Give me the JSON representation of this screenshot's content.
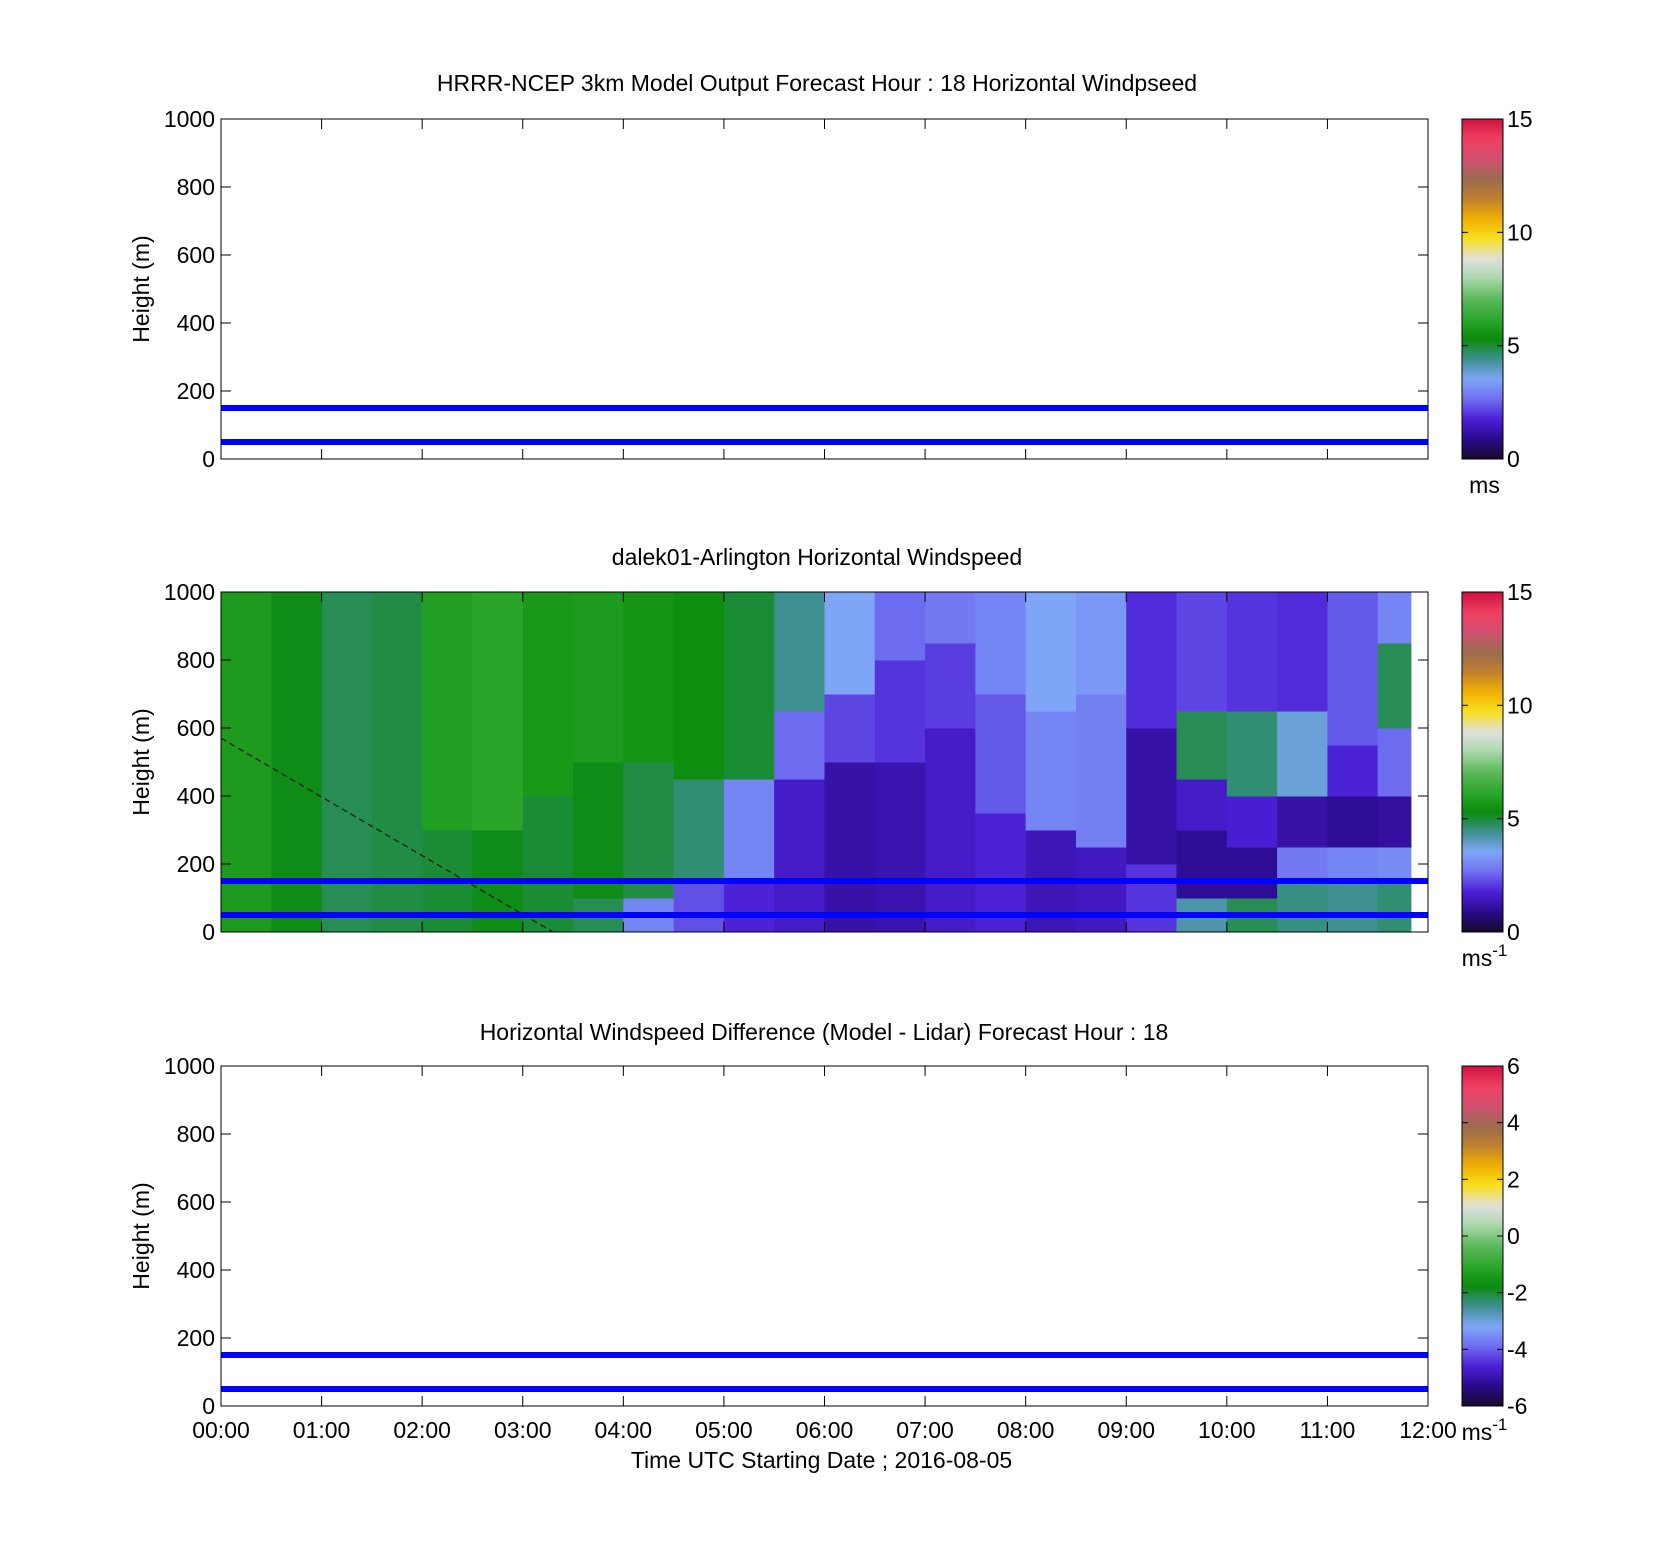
{
  "chart_data": [
    {
      "type": "heatmap",
      "title": "HRRR-NCEP 3km Model Output   Forecast Hour : 18 Horizontal Windpseed",
      "xlabel": "",
      "ylabel": "Height (m)",
      "xlim": [
        "00:00",
        "12:00"
      ],
      "ylim": [
        0,
        1000
      ],
      "x_ticks": [
        "00:00",
        "01:00",
        "02:00",
        "03:00",
        "04:00",
        "05:00",
        "06:00",
        "07:00",
        "08:00",
        "09:00",
        "10:00",
        "11:00",
        "12:00"
      ],
      "y_ticks": [
        0,
        200,
        400,
        600,
        800,
        1000
      ],
      "reference_lines_height_m": [
        50,
        150
      ],
      "reference_line_color": "#0000ff",
      "colorbar": {
        "ticks": [
          0,
          5,
          10,
          15
        ],
        "range": [
          0,
          15
        ],
        "unit_label": "ms",
        "unit_superscript": ""
      },
      "cells": []
    },
    {
      "type": "heatmap",
      "title": "dalek01-Arlington  Horizontal Windspeed",
      "xlabel": "",
      "ylabel": "Height (m)",
      "xlim": [
        "00:00",
        "12:00"
      ],
      "ylim": [
        0,
        1000
      ],
      "x_ticks": [
        "00:00",
        "01:00",
        "02:00",
        "03:00",
        "04:00",
        "05:00",
        "06:00",
        "07:00",
        "08:00",
        "09:00",
        "10:00",
        "11:00",
        "12:00"
      ],
      "y_ticks": [
        0,
        200,
        400,
        600,
        800,
        1000
      ],
      "reference_lines_height_m": [
        50,
        150
      ],
      "reference_line_color": "#0000ff",
      "colorbar": {
        "ticks": [
          0,
          5,
          10,
          15
        ],
        "range": [
          0,
          15
        ],
        "unit_label": "ms",
        "unit_superscript": "-1"
      },
      "data_time_range_hours": [
        0,
        11.83
      ],
      "data_height_range_m": [
        0,
        1000
      ],
      "dashed_line": {
        "from": [
          0,
          570
        ],
        "to": [
          3.3,
          0
        ]
      },
      "profiles": [
        {
          "t_start": 0.0,
          "t_end": 0.5,
          "segments": [
            [
              0,
              1000,
              5.8
            ]
          ]
        },
        {
          "t_start": 0.5,
          "t_end": 1.0,
          "segments": [
            [
              0,
              1000,
              5.2
            ]
          ]
        },
        {
          "t_start": 1.0,
          "t_end": 1.5,
          "segments": [
            [
              0,
              1000,
              4.8
            ]
          ]
        },
        {
          "t_start": 1.5,
          "t_end": 2.0,
          "segments": [
            [
              0,
              1000,
              4.9
            ]
          ]
        },
        {
          "t_start": 2.0,
          "t_end": 2.5,
          "segments": [
            [
              0,
              300,
              5.0
            ],
            [
              300,
              1000,
              5.9
            ]
          ]
        },
        {
          "t_start": 2.5,
          "t_end": 3.0,
          "segments": [
            [
              0,
              300,
              5.2
            ],
            [
              300,
              1000,
              6.1
            ]
          ]
        },
        {
          "t_start": 3.0,
          "t_end": 3.5,
          "segments": [
            [
              0,
              400,
              5.0
            ],
            [
              400,
              1000,
              5.7
            ]
          ]
        },
        {
          "t_start": 3.5,
          "t_end": 4.0,
          "segments": [
            [
              0,
              100,
              4.8
            ],
            [
              100,
              500,
              5.2
            ],
            [
              500,
              1000,
              5.8
            ]
          ]
        },
        {
          "t_start": 4.0,
          "t_end": 4.5,
          "segments": [
            [
              0,
              100,
              3.0
            ],
            [
              100,
              500,
              4.9
            ],
            [
              500,
              1000,
              5.6
            ]
          ]
        },
        {
          "t_start": 4.5,
          "t_end": 5.0,
          "segments": [
            [
              0,
              150,
              2.3
            ],
            [
              150,
              450,
              4.6
            ],
            [
              450,
              1000,
              5.4
            ]
          ]
        },
        {
          "t_start": 5.0,
          "t_end": 5.5,
          "segments": [
            [
              0,
              150,
              1.8
            ],
            [
              150,
              450,
              3.0
            ],
            [
              450,
              1000,
              5.0
            ]
          ]
        },
        {
          "t_start": 5.5,
          "t_end": 6.0,
          "segments": [
            [
              0,
              450,
              1.6
            ],
            [
              450,
              650,
              2.6
            ],
            [
              650,
              1000,
              4.4
            ]
          ]
        },
        {
          "t_start": 6.0,
          "t_end": 6.5,
          "segments": [
            [
              0,
              500,
              1.2
            ],
            [
              500,
              700,
              2.2
            ],
            [
              700,
              1000,
              3.5
            ]
          ]
        },
        {
          "t_start": 6.5,
          "t_end": 7.0,
          "segments": [
            [
              0,
              500,
              1.3
            ],
            [
              500,
              800,
              2.0
            ],
            [
              800,
              1000,
              2.6
            ]
          ]
        },
        {
          "t_start": 7.0,
          "t_end": 7.5,
          "segments": [
            [
              0,
              600,
              1.6
            ],
            [
              600,
              850,
              2.1
            ],
            [
              850,
              1000,
              2.8
            ]
          ]
        },
        {
          "t_start": 7.5,
          "t_end": 8.0,
          "segments": [
            [
              0,
              350,
              1.8
            ],
            [
              350,
              700,
              2.4
            ],
            [
              700,
              1000,
              3.0
            ]
          ]
        },
        {
          "t_start": 8.0,
          "t_end": 8.5,
          "segments": [
            [
              0,
              300,
              1.4
            ],
            [
              300,
              650,
              3.0
            ],
            [
              650,
              1000,
              3.5
            ]
          ]
        },
        {
          "t_start": 8.5,
          "t_end": 9.0,
          "segments": [
            [
              0,
              250,
              1.5
            ],
            [
              250,
              700,
              2.9
            ],
            [
              700,
              1000,
              3.3
            ]
          ]
        },
        {
          "t_start": 9.0,
          "t_end": 9.5,
          "segments": [
            [
              0,
              200,
              2.0
            ],
            [
              200,
              600,
              1.2
            ],
            [
              600,
              1000,
              1.9
            ]
          ]
        },
        {
          "t_start": 9.5,
          "t_end": 10.0,
          "segments": [
            [
              0,
              100,
              4.2
            ],
            [
              100,
              300,
              1.0
            ],
            [
              300,
              450,
              1.6
            ],
            [
              450,
              650,
              4.8
            ],
            [
              650,
              1000,
              2.2
            ]
          ]
        },
        {
          "t_start": 10.0,
          "t_end": 10.5,
          "segments": [
            [
              0,
              100,
              4.8
            ],
            [
              100,
              250,
              1.0
            ],
            [
              250,
              400,
              1.7
            ],
            [
              400,
              650,
              4.6
            ],
            [
              650,
              1000,
              2.0
            ]
          ]
        },
        {
          "t_start": 10.5,
          "t_end": 11.0,
          "segments": [
            [
              0,
              150,
              4.5
            ],
            [
              150,
              250,
              2.8
            ],
            [
              250,
              400,
              1.2
            ],
            [
              400,
              650,
              3.8
            ],
            [
              650,
              1000,
              1.9
            ]
          ]
        },
        {
          "t_start": 11.0,
          "t_end": 11.5,
          "segments": [
            [
              0,
              150,
              4.4
            ],
            [
              150,
              250,
              3.0
            ],
            [
              250,
              400,
              1.0
            ],
            [
              400,
              550,
              1.8
            ],
            [
              550,
              1000,
              2.4
            ]
          ]
        },
        {
          "t_start": 11.5,
          "t_end": 11.83,
          "segments": [
            [
              0,
              150,
              4.6
            ],
            [
              150,
              250,
              3.1
            ],
            [
              250,
              400,
              1.1
            ],
            [
              400,
              600,
              2.6
            ],
            [
              600,
              850,
              4.8
            ],
            [
              850,
              1000,
              3.0
            ]
          ]
        }
      ]
    },
    {
      "type": "heatmap",
      "title": "Horizontal Windspeed Difference (Model - Lidar) Forecast Hour : 18",
      "xlabel": "Time UTC  Starting Date ; 2016-08-05",
      "ylabel": "Height (m)",
      "xlim": [
        "00:00",
        "12:00"
      ],
      "ylim": [
        0,
        1000
      ],
      "x_ticks": [
        "00:00",
        "01:00",
        "02:00",
        "03:00",
        "04:00",
        "05:00",
        "06:00",
        "07:00",
        "08:00",
        "09:00",
        "10:00",
        "11:00",
        "12:00"
      ],
      "y_ticks": [
        0,
        200,
        400,
        600,
        800,
        1000
      ],
      "reference_lines_height_m": [
        50,
        150
      ],
      "reference_line_color": "#0000ff",
      "colorbar": {
        "ticks": [
          -6,
          -4,
          -2,
          0,
          2,
          4,
          6
        ],
        "range": [
          -6,
          6
        ],
        "unit_label": "ms",
        "unit_superscript": "-1"
      },
      "cells": []
    }
  ],
  "colormap_stops": [
    "#808080",
    "#150a2a",
    "#2a0a8c",
    "#4b1fd6",
    "#6f6ff0",
    "#7fa7f8",
    "#3d8f8f",
    "#0a8a0a",
    "#2da82d",
    "#5cb85c",
    "#a8d8a8",
    "#e0e0e0",
    "#f8e020",
    "#f0b000",
    "#c08030",
    "#9a6a50",
    "#d05070",
    "#f04060",
    "#d01040",
    "#808080"
  ]
}
